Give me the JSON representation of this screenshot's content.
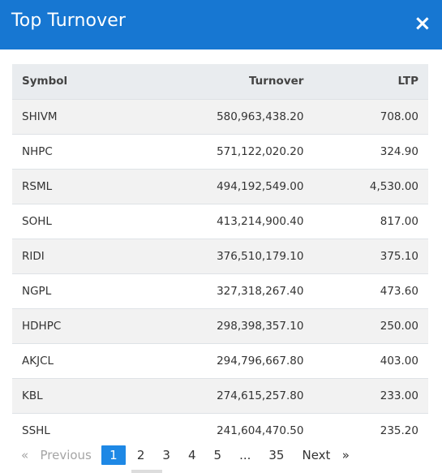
{
  "modal": {
    "title": "Top Turnover",
    "close_glyph": "×"
  },
  "table": {
    "columns": [
      "Symbol",
      "Turnover",
      "LTP"
    ],
    "rows": [
      {
        "symbol": "SHIVM",
        "turnover": "580,963,438.20",
        "ltp": "708.00"
      },
      {
        "symbol": "NHPC",
        "turnover": "571,122,020.20",
        "ltp": "324.90"
      },
      {
        "symbol": "RSML",
        "turnover": "494,192,549.00",
        "ltp": "4,530.00"
      },
      {
        "symbol": "SOHL",
        "turnover": "413,214,900.40",
        "ltp": "817.00"
      },
      {
        "symbol": "RIDI",
        "turnover": "376,510,179.10",
        "ltp": "375.10"
      },
      {
        "symbol": "NGPL",
        "turnover": "327,318,267.40",
        "ltp": "473.60"
      },
      {
        "symbol": "HDHPC",
        "turnover": "298,398,357.10",
        "ltp": "250.00"
      },
      {
        "symbol": "AKJCL",
        "turnover": "294,796,667.80",
        "ltp": "403.00"
      },
      {
        "symbol": "KBL",
        "turnover": "274,615,257.80",
        "ltp": "233.00"
      },
      {
        "symbol": "SSHL",
        "turnover": "241,604,470.50",
        "ltp": "235.20"
      }
    ]
  },
  "pagination": {
    "prev_label": "«   Previous",
    "pages": [
      "1",
      "2",
      "3",
      "4",
      "5",
      "...",
      "35"
    ],
    "active_page": "1",
    "next_label": "Next   »"
  }
}
